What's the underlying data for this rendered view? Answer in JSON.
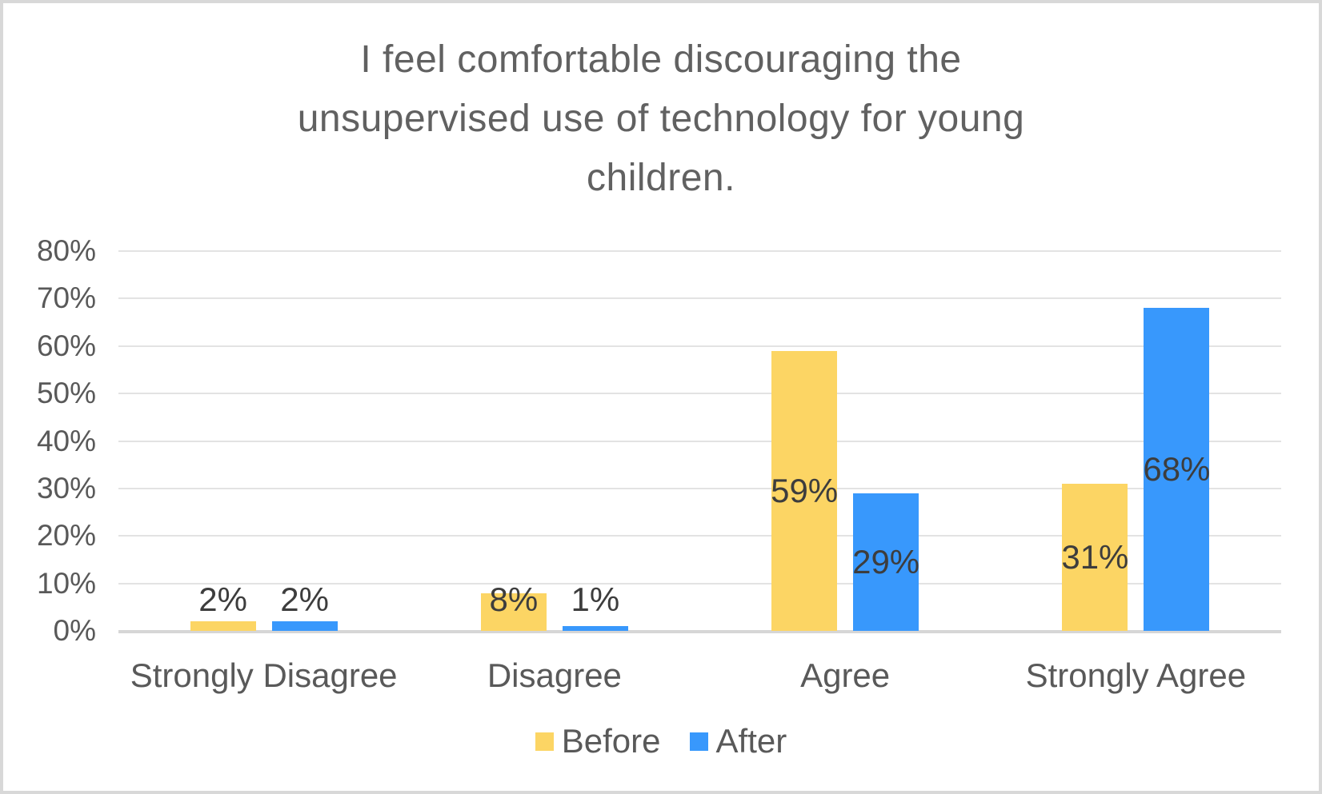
{
  "chart_data": {
    "type": "bar",
    "title": "I feel comfortable discouraging the unsupervised use of technology for young children.",
    "title_lines": [
      "I feel comfortable discouraging the",
      "unsupervised use of technology for young",
      "children."
    ],
    "categories": [
      "Strongly Disagree",
      "Disagree",
      "Agree",
      "Strongly Agree"
    ],
    "series": [
      {
        "name": "Before",
        "color": "#FCD564",
        "values": [
          2,
          8,
          59,
          31
        ]
      },
      {
        "name": "After",
        "color": "#3898FC",
        "values": [
          2,
          1,
          29,
          68
        ]
      }
    ],
    "value_label_suffix": "%",
    "ylabel": "",
    "xlabel": "",
    "ylim": [
      0,
      80
    ],
    "ytick_step": 10,
    "yticks": [
      "0%",
      "10%",
      "20%",
      "30%",
      "40%",
      "50%",
      "60%",
      "70%",
      "80%"
    ],
    "grid": true,
    "legend_position": "bottom"
  },
  "colors": {
    "background": "#FFFFFF",
    "frame_border": "#D8D8D8",
    "gridline": "#E3E3E3",
    "axis_line": "#D6D6D6",
    "title_text": "#616161",
    "axis_text": "#595959",
    "data_label_text": "#3D3D3D",
    "series_before": "#FCD564",
    "series_after": "#3898FC"
  }
}
